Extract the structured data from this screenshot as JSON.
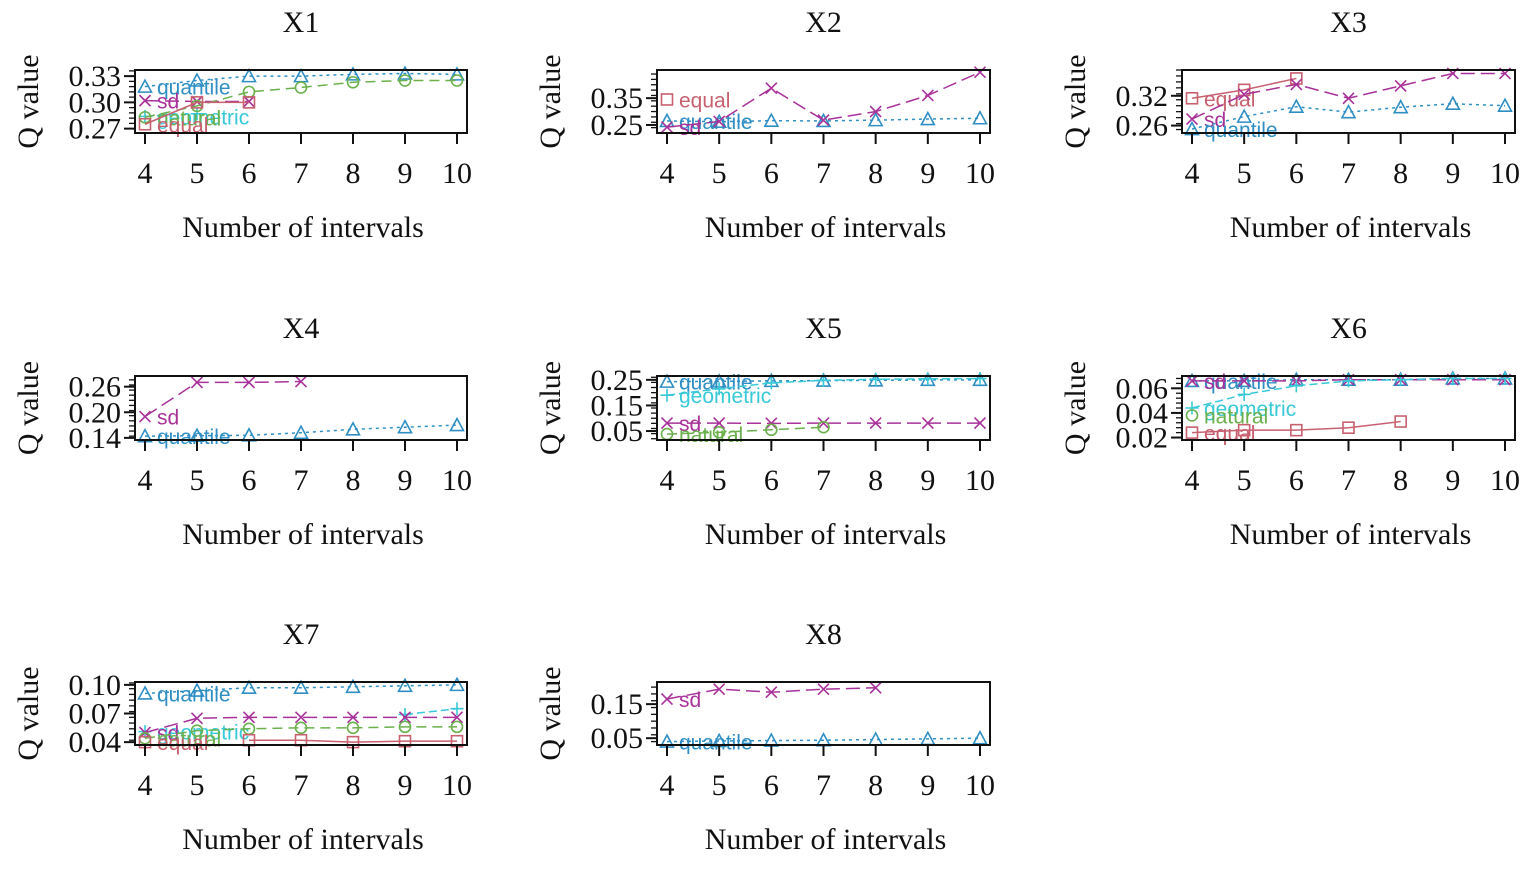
{
  "colors": {
    "equal": "#c8606f",
    "natural": "#6ab04c",
    "quantile": "#2f8fc4",
    "geometric": "#38c9d8",
    "sd": "#a8329a",
    "axis": "#111111"
  },
  "chart_data": [
    {
      "type": "line",
      "title": "X1",
      "xlabel": "Number of intervals",
      "ylabel": "Q value",
      "x": [
        4,
        5,
        6,
        7,
        8,
        9,
        10
      ],
      "xticks": [
        "4",
        "5",
        "6",
        "7",
        "8",
        "9",
        "10"
      ],
      "yticks": [
        "0.27",
        "0.30",
        "0.33"
      ],
      "ylim": [
        0.265,
        0.337
      ],
      "series": [
        {
          "name": "quantile",
          "values": [
            0.318,
            0.325,
            0.33,
            0.33,
            0.332,
            0.333,
            0.332
          ]
        },
        {
          "name": "sd",
          "values": [
            0.302,
            0.301,
            0.301,
            null,
            null,
            null,
            null
          ]
        },
        {
          "name": "geometric",
          "values": [
            0.284,
            0.287,
            null,
            null,
            null,
            null,
            null
          ]
        },
        {
          "name": "natural",
          "values": [
            0.283,
            0.296,
            0.312,
            0.317,
            0.323,
            0.325,
            0.325
          ]
        },
        {
          "name": "equal",
          "values": [
            0.275,
            0.3,
            0.3,
            null,
            null,
            null,
            null
          ]
        }
      ]
    },
    {
      "type": "line",
      "title": "X2",
      "xlabel": "Number of intervals",
      "ylabel": "Q value",
      "x": [
        4,
        5,
        6,
        7,
        8,
        9,
        10
      ],
      "xticks": [
        "4",
        "5",
        "6",
        "7",
        "8",
        "9",
        "10"
      ],
      "yticks": [
        "0.25",
        "0.35"
      ],
      "ylim": [
        0.22,
        0.455
      ],
      "series": [
        {
          "name": "equal",
          "values": [
            0.345,
            null,
            null,
            null,
            null,
            null,
            null
          ]
        },
        {
          "name": "quantile",
          "values": [
            0.265,
            0.262,
            0.266,
            0.265,
            0.268,
            0.272,
            0.275
          ]
        },
        {
          "name": "sd",
          "values": [
            0.242,
            0.263,
            0.387,
            0.268,
            0.3,
            0.36,
            0.447
          ]
        }
      ]
    },
    {
      "type": "line",
      "title": "X3",
      "xlabel": "Number of intervals",
      "ylabel": "Q value",
      "x": [
        4,
        5,
        6,
        7,
        8,
        9,
        10
      ],
      "xticks": [
        "4",
        "5",
        "6",
        "7",
        "8",
        "9",
        "10"
      ],
      "yticks": [
        "0.26",
        "0.32"
      ],
      "ylim": [
        0.245,
        0.372
      ],
      "series": [
        {
          "name": "equal",
          "values": [
            0.315,
            0.332,
            0.355,
            null,
            null,
            null,
            null
          ]
        },
        {
          "name": "sd",
          "values": [
            0.273,
            0.323,
            0.343,
            0.315,
            0.34,
            0.365,
            0.365
          ]
        },
        {
          "name": "quantile",
          "values": [
            0.253,
            0.278,
            0.298,
            0.287,
            0.297,
            0.304,
            0.3
          ]
        }
      ]
    },
    {
      "type": "line",
      "title": "X4",
      "xlabel": "Number of intervals",
      "ylabel": "Q value",
      "x": [
        4,
        5,
        6,
        7,
        8,
        9,
        10
      ],
      "xticks": [
        "4",
        "5",
        "6",
        "7",
        "8",
        "9",
        "10"
      ],
      "yticks": [
        "0.14",
        "0.20",
        "0.26"
      ],
      "ylim": [
        0.135,
        0.285
      ],
      "series": [
        {
          "name": "sd",
          "values": [
            0.19,
            0.27,
            0.27,
            0.272,
            null,
            null,
            null
          ]
        },
        {
          "name": "quantile",
          "values": [
            0.144,
            0.145,
            0.146,
            0.152,
            0.16,
            0.165,
            0.17
          ]
        }
      ]
    },
    {
      "type": "line",
      "title": "X5",
      "xlabel": "Number of intervals",
      "ylabel": "Q value",
      "x": [
        4,
        5,
        6,
        7,
        8,
        9,
        10
      ],
      "xticks": [
        "4",
        "5",
        "6",
        "7",
        "8",
        "9",
        "10"
      ],
      "yticks": [
        "0.05",
        "0.15",
        "0.25"
      ],
      "ylim": [
        0.015,
        0.265
      ],
      "series": [
        {
          "name": "quantile",
          "values": [
            0.243,
            0.244,
            0.246,
            0.247,
            0.248,
            0.25,
            0.25
          ]
        },
        {
          "name": "geometric",
          "values": [
            0.19,
            0.215,
            0.238,
            0.248,
            0.252,
            0.254,
            0.255
          ]
        },
        {
          "name": "sd",
          "values": [
            0.081,
            0.081,
            0.08,
            0.081,
            0.081,
            0.081,
            0.081
          ]
        },
        {
          "name": "natural",
          "values": [
            0.038,
            0.045,
            0.055,
            0.065,
            null,
            null,
            null
          ]
        }
      ]
    },
    {
      "type": "line",
      "title": "X6",
      "xlabel": "Number of intervals",
      "ylabel": "Q value",
      "x": [
        4,
        5,
        6,
        7,
        8,
        9,
        10
      ],
      "xticks": [
        "4",
        "5",
        "6",
        "7",
        "8",
        "9",
        "10"
      ],
      "yticks": [
        "0.02",
        "0.04",
        "0.06"
      ],
      "ylim": [
        0.018,
        0.07
      ],
      "series": [
        {
          "name": "quantile",
          "values": [
            0.066,
            0.066,
            0.067,
            0.067,
            0.067,
            0.068,
            0.068
          ]
        },
        {
          "name": "sd",
          "values": [
            0.066,
            0.066,
            0.066,
            0.067,
            0.067,
            0.067,
            0.067
          ]
        },
        {
          "name": "geometric",
          "values": [
            0.044,
            0.055,
            0.062,
            0.066,
            0.067,
            0.068,
            0.068
          ]
        },
        {
          "name": "natural",
          "values": [
            0.038,
            null,
            null,
            null,
            null,
            null,
            null
          ]
        },
        {
          "name": "equal",
          "values": [
            0.024,
            0.026,
            0.026,
            0.028,
            0.033,
            null,
            null
          ]
        }
      ]
    },
    {
      "type": "line",
      "title": "X7",
      "xlabel": "Number of intervals",
      "ylabel": "Q value",
      "x": [
        4,
        5,
        6,
        7,
        8,
        9,
        10
      ],
      "xticks": [
        "4",
        "5",
        "6",
        "7",
        "8",
        "9",
        "10"
      ],
      "yticks": [
        "0.04",
        "0.07",
        "0.10"
      ],
      "ylim": [
        0.037,
        0.103
      ],
      "series": [
        {
          "name": "quantile",
          "values": [
            0.091,
            0.094,
            0.097,
            0.097,
            0.098,
            0.099,
            0.1
          ]
        },
        {
          "name": "geometric",
          "values": [
            0.051,
            null,
            null,
            null,
            null,
            0.069,
            0.075
          ]
        },
        {
          "name": "sd",
          "values": [
            0.05,
            0.065,
            0.066,
            0.066,
            0.066,
            0.066,
            0.066
          ]
        },
        {
          "name": "natural",
          "values": [
            0.044,
            0.052,
            0.054,
            0.055,
            0.055,
            0.056,
            0.056
          ]
        },
        {
          "name": "equal",
          "values": [
            0.04,
            null,
            0.042,
            0.042,
            0.04,
            0.041,
            0.041
          ]
        }
      ]
    },
    {
      "type": "line",
      "title": "X8",
      "xlabel": "Number of intervals",
      "ylabel": "Q value",
      "x": [
        4,
        5,
        6,
        7,
        8,
        9,
        10
      ],
      "xticks": [
        "4",
        "5",
        "6",
        "7",
        "8",
        "9",
        "10"
      ],
      "yticks": [
        "0.05",
        "0.15"
      ],
      "ylim": [
        0.03,
        0.215
      ],
      "series": [
        {
          "name": "sd",
          "values": [
            0.165,
            0.194,
            0.185,
            0.194,
            0.198,
            null,
            null
          ]
        },
        {
          "name": "quantile",
          "values": [
            0.04,
            0.042,
            0.043,
            0.044,
            0.046,
            0.048,
            0.05
          ]
        }
      ]
    }
  ]
}
